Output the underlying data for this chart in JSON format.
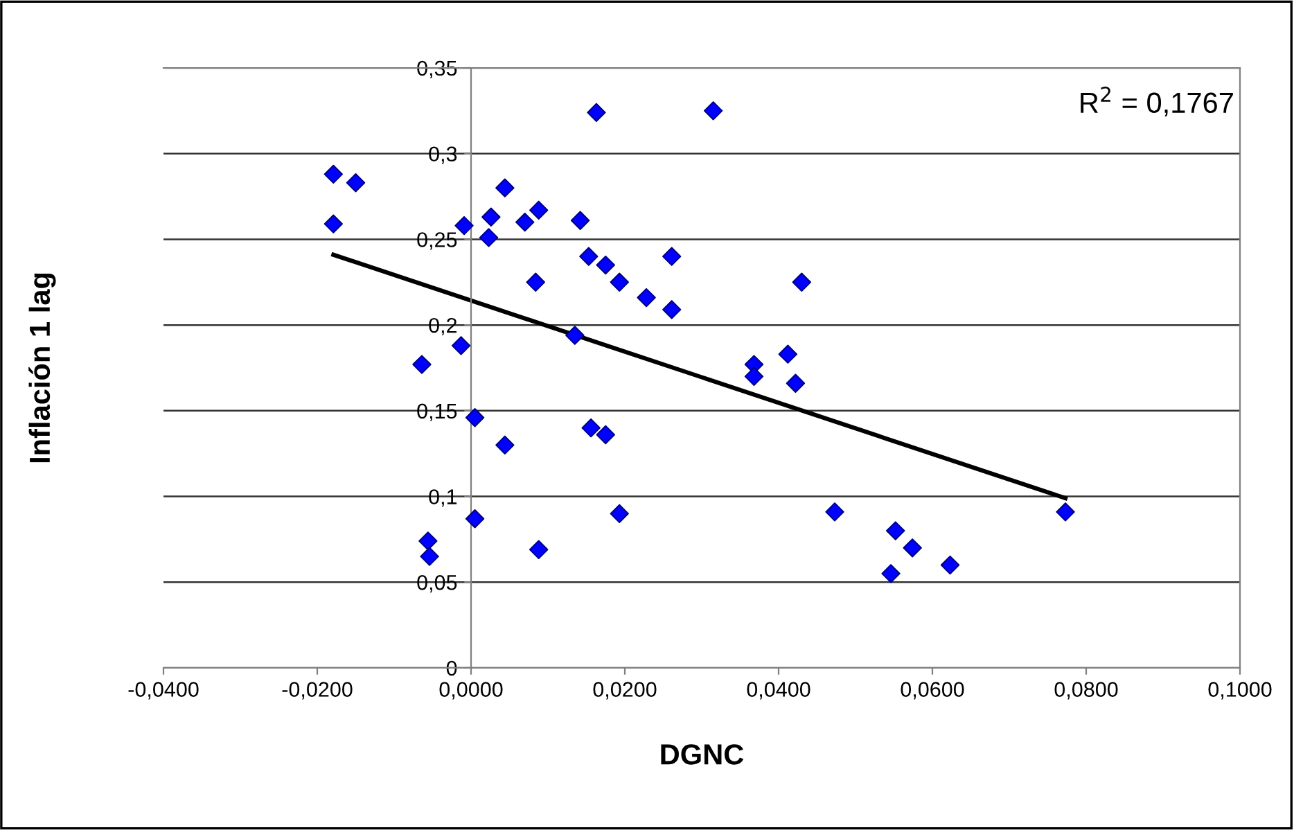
{
  "chart_data": {
    "type": "scatter",
    "xlabel": "DGNC",
    "ylabel": "Inflación 1 lag",
    "annotations": [
      "R$^{2}$ = 0,1767"
    ],
    "series": [
      {
        "color": "#0000ff",
        "marker": "diamond",
        "x": [
          -0.0179,
          -0.015,
          -0.0179,
          -0.0009,
          0.0026,
          0.0044,
          0.0023,
          0.007,
          0.0088,
          0.0084,
          -0.0013,
          -0.0064,
          0.0005,
          0.0044,
          0.0005,
          -0.0056,
          -0.0054,
          0.0088,
          0.0163,
          0.0315,
          0.0142,
          0.0153,
          0.0175,
          0.0193,
          0.0228,
          0.0261,
          0.0261,
          0.043,
          0.0135,
          0.0368,
          0.0368,
          0.0412,
          0.0422,
          0.0156,
          0.0175,
          0.0193,
          0.0473,
          0.0552,
          0.0574,
          0.0546,
          0.0623,
          0.0773
        ],
        "values": [
          0.288,
          0.283,
          0.259,
          0.258,
          0.263,
          0.28,
          0.251,
          0.26,
          0.267,
          0.225,
          0.188,
          0.177,
          0.146,
          0.13,
          0.087,
          0.074,
          0.065,
          0.069,
          0.324,
          0.325,
          0.261,
          0.24,
          0.235,
          0.225,
          0.216,
          0.24,
          0.209,
          0.225,
          0.194,
          0.177,
          0.17,
          0.183,
          0.166,
          0.14,
          0.136,
          0.09,
          0.091,
          0.08,
          0.07,
          0.055,
          0.06,
          0.091
        ]
      },
      {
        "type": "line",
        "color": "#000000",
        "x": [
          -0.0179,
          0.0773
        ],
        "values": [
          0.241,
          0.099
        ]
      }
    ],
    "xlim": [
      -0.04,
      0.1
    ],
    "xticks": [
      {
        "value": -0.04,
        "label": "-0,0400"
      },
      {
        "value": -0.02,
        "label": "-0,0200"
      },
      {
        "value": 0,
        "label": "0,0000"
      },
      {
        "value": 0.02,
        "label": "0,0200"
      },
      {
        "value": 0.04,
        "label": "0,0400"
      },
      {
        "value": 0.06,
        "label": "0,0600"
      },
      {
        "value": 0.08,
        "label": "0,0800"
      },
      {
        "value": 0.1,
        "label": "0,1000"
      }
    ],
    "ylim": [
      0,
      0.35
    ],
    "yticks": [
      0,
      {
        "value": 0.05,
        "label": "0,05"
      },
      {
        "value": 0.1,
        "label": "0,1"
      },
      {
        "value": 0.15,
        "label": "0,15"
      },
      {
        "value": 0.2,
        "label": "0,2"
      },
      {
        "value": 0.25,
        "label": "0,25"
      },
      {
        "value": 0.3,
        "label": "0,3"
      },
      {
        "value": 0.35,
        "label": "0,35"
      }
    ],
    "grid": "y",
    "legend": false
  }
}
